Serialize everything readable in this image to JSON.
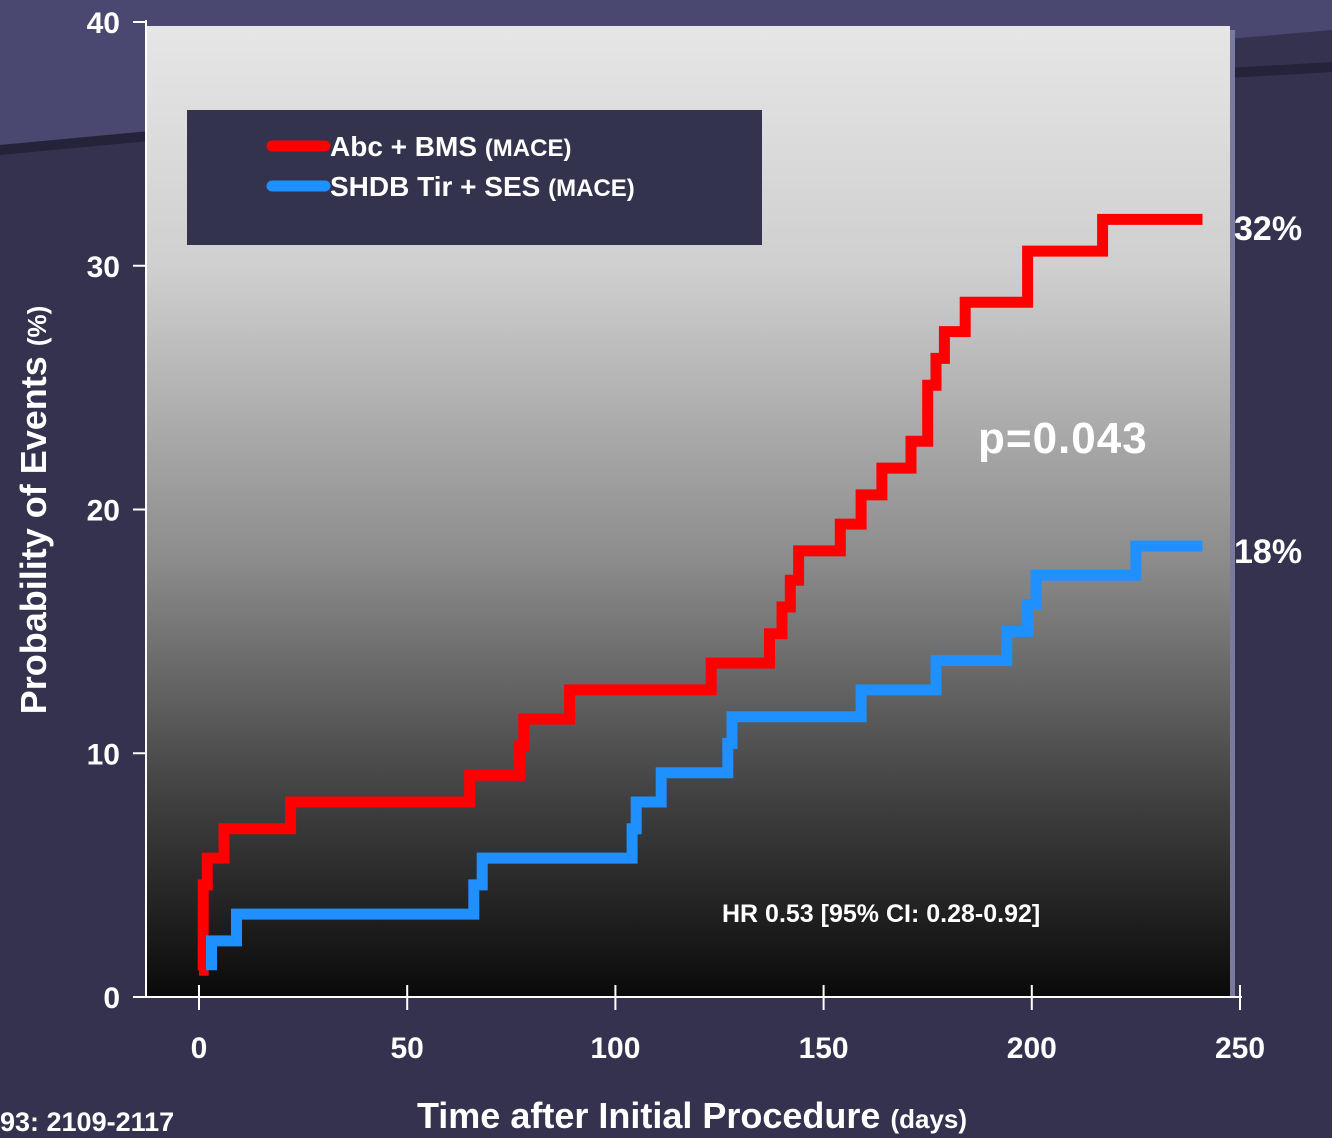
{
  "colors": {
    "series_red": "#ff0000",
    "series_blue": "#1e90ff",
    "slide_background": "#34324f",
    "legend_box": "#33334d"
  },
  "chart_data": {
    "type": "line",
    "xlabel": "Time after Initial Procedure",
    "xlabel_unit": "(days)",
    "ylabel": "Probability of Events",
    "ylabel_unit": "(%)",
    "xlim": [
      0,
      250
    ],
    "ylim": [
      0,
      40
    ],
    "xticks": [
      0,
      50,
      100,
      150,
      200,
      250
    ],
    "yticks": [
      0,
      10,
      20,
      30,
      40
    ],
    "grid": false,
    "legend_position": "top-left",
    "series": [
      {
        "name": "Abc + BMS",
        "name_suffix": "(MACE)",
        "color": "#ff0000",
        "step": true,
        "points": [
          [
            0,
            1.1
          ],
          [
            1,
            1.1
          ],
          [
            1,
            4.6
          ],
          [
            2,
            4.6
          ],
          [
            2,
            5.7
          ],
          [
            6,
            5.7
          ],
          [
            6,
            6.9
          ],
          [
            22,
            6.9
          ],
          [
            22,
            8.0
          ],
          [
            65,
            8.0
          ],
          [
            65,
            9.1
          ],
          [
            77,
            9.1
          ],
          [
            77,
            10.3
          ],
          [
            78,
            10.3
          ],
          [
            78,
            11.4
          ],
          [
            89,
            11.4
          ],
          [
            89,
            12.6
          ],
          [
            123,
            12.6
          ],
          [
            123,
            13.7
          ],
          [
            137,
            13.7
          ],
          [
            137,
            14.9
          ],
          [
            140,
            14.9
          ],
          [
            140,
            16.0
          ],
          [
            142,
            16.0
          ],
          [
            142,
            17.1
          ],
          [
            144,
            17.1
          ],
          [
            144,
            18.3
          ],
          [
            154,
            18.3
          ],
          [
            154,
            19.4
          ],
          [
            159,
            19.4
          ],
          [
            159,
            20.6
          ],
          [
            164,
            20.6
          ],
          [
            164,
            21.7
          ],
          [
            171,
            21.7
          ],
          [
            171,
            22.8
          ],
          [
            175,
            22.8
          ],
          [
            175,
            25.1
          ],
          [
            177,
            25.1
          ],
          [
            177,
            26.2
          ],
          [
            179,
            26.2
          ],
          [
            179,
            27.3
          ],
          [
            184,
            27.3
          ],
          [
            184,
            28.5
          ],
          [
            199,
            28.5
          ],
          [
            199,
            30.6
          ],
          [
            217,
            30.6
          ],
          [
            217,
            31.9
          ],
          [
            241,
            31.9
          ]
        ]
      },
      {
        "name": "SHDB Tir + SES",
        "name_suffix": "(MACE)",
        "color": "#1e90ff",
        "step": true,
        "points": [
          [
            3,
            1.1
          ],
          [
            3,
            2.3
          ],
          [
            9,
            2.3
          ],
          [
            9,
            3.4
          ],
          [
            66,
            3.4
          ],
          [
            66,
            4.6
          ],
          [
            68,
            4.6
          ],
          [
            68,
            5.7
          ],
          [
            104,
            5.7
          ],
          [
            104,
            6.9
          ],
          [
            105,
            6.9
          ],
          [
            105,
            8.0
          ],
          [
            111,
            8.0
          ],
          [
            111,
            9.2
          ],
          [
            127,
            9.2
          ],
          [
            127,
            10.4
          ],
          [
            128,
            10.4
          ],
          [
            128,
            11.5
          ],
          [
            159,
            11.5
          ],
          [
            159,
            12.6
          ],
          [
            177,
            12.6
          ],
          [
            177,
            13.8
          ],
          [
            194,
            13.8
          ],
          [
            194,
            15.0
          ],
          [
            199,
            15.0
          ],
          [
            199,
            16.1
          ],
          [
            201,
            16.1
          ],
          [
            201,
            17.3
          ],
          [
            225,
            17.3
          ],
          [
            225,
            18.5
          ],
          [
            241,
            18.5
          ]
        ]
      }
    ],
    "end_labels": [
      "32%",
      "18%"
    ],
    "annotations": {
      "pvalue": "p=0.043",
      "hazard_ratio": "HR 0.53 [95% CI: 0.28-0.92]"
    },
    "citation": "93: 2109-2117"
  }
}
